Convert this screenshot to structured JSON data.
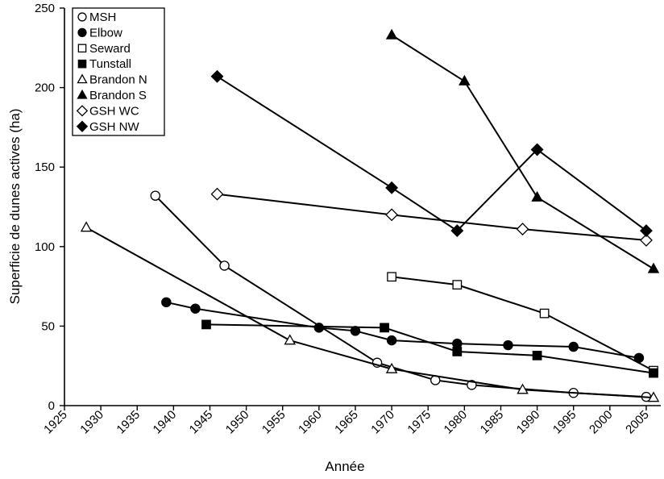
{
  "chart_data": {
    "type": "scatter",
    "xlabel": "Année",
    "ylabel": "Superficie de dunes actives (ha)",
    "xlim": [
      1925,
      2007
    ],
    "ylim": [
      0,
      250
    ],
    "xticks": [
      "1925",
      "1930",
      "1935",
      "1940",
      "1945",
      "1950",
      "1955",
      "1960",
      "1965",
      "1970",
      "1975",
      "1980",
      "1985",
      "1990",
      "1995",
      "2000",
      "2005"
    ],
    "yticks": [
      "0",
      "50",
      "100",
      "150",
      "200",
      "250"
    ],
    "grid": false,
    "legend_position": "top-left",
    "series": [
      {
        "name": "MSH",
        "marker": "circle-open",
        "points": [
          [
            1937.5,
            132
          ],
          [
            1947,
            88
          ],
          [
            1968,
            27
          ],
          [
            1976,
            16
          ],
          [
            1981,
            13
          ],
          [
            1995,
            8
          ],
          [
            2005,
            5.5
          ]
        ]
      },
      {
        "name": "Elbow",
        "marker": "circle-filled",
        "points": [
          [
            1939,
            65
          ],
          [
            1943,
            61
          ],
          [
            1960,
            49
          ],
          [
            1965,
            47
          ],
          [
            1970,
            41
          ],
          [
            1979,
            39
          ],
          [
            1986,
            38
          ],
          [
            1995,
            37
          ],
          [
            2004,
            30
          ]
        ]
      },
      {
        "name": "Seward",
        "marker": "square-open",
        "points": [
          [
            1970,
            81
          ],
          [
            1979,
            76
          ],
          [
            1991,
            58
          ],
          [
            2006,
            22
          ]
        ]
      },
      {
        "name": "Tunstall",
        "marker": "square-filled",
        "points": [
          [
            1944.5,
            51
          ],
          [
            1969,
            49
          ],
          [
            1979,
            34
          ],
          [
            1990,
            31.5
          ],
          [
            2006,
            20.5
          ]
        ]
      },
      {
        "name": "Brandon N",
        "marker": "triangle-open",
        "points": [
          [
            1928,
            112
          ],
          [
            1956,
            41
          ],
          [
            1970,
            23
          ],
          [
            1988,
            10
          ],
          [
            2006,
            5
          ]
        ]
      },
      {
        "name": "Brandon S",
        "marker": "triangle-filled",
        "points": [
          [
            1970,
            233
          ],
          [
            1980,
            204
          ],
          [
            1990,
            131
          ],
          [
            2006,
            86
          ]
        ]
      },
      {
        "name": "GSH WC",
        "marker": "diamond-open",
        "points": [
          [
            1946,
            133
          ],
          [
            1970,
            120
          ],
          [
            1988,
            111
          ],
          [
            2005,
            104
          ]
        ]
      },
      {
        "name": "GSH NW",
        "marker": "diamond-filled",
        "points": [
          [
            1946,
            207
          ],
          [
            1970,
            137
          ],
          [
            1979,
            110
          ],
          [
            1990,
            161
          ],
          [
            2005,
            110
          ]
        ]
      }
    ]
  }
}
